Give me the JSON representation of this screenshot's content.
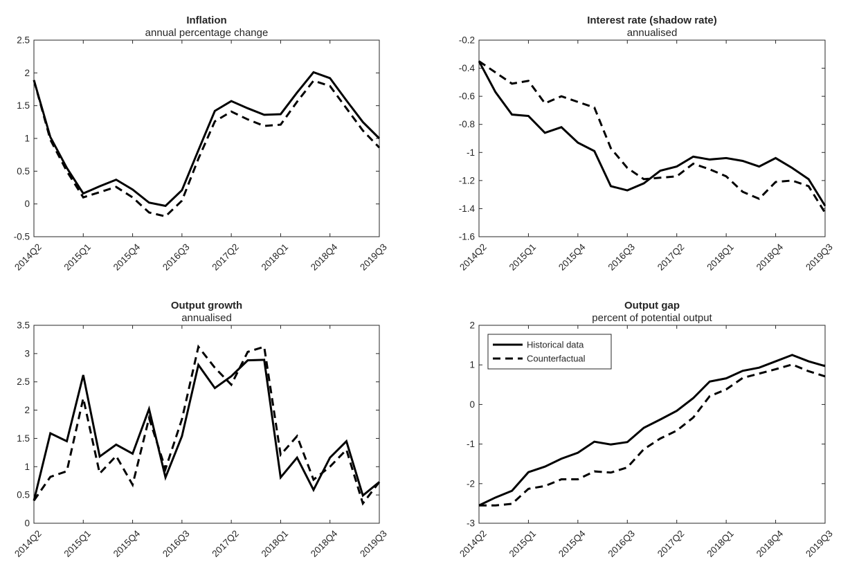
{
  "chart_data": [
    {
      "type": "line",
      "title": "Inflation",
      "subtitle": "annual percentage change",
      "x_tick_labels": [
        "2014Q2",
        "2015Q1",
        "2015Q4",
        "2016Q3",
        "2017Q2",
        "2018Q1",
        "2018Q4",
        "2019Q3"
      ],
      "x": [
        "2014Q2",
        "2014Q3",
        "2014Q4",
        "2015Q1",
        "2015Q2",
        "2015Q3",
        "2015Q4",
        "2016Q1",
        "2016Q2",
        "2016Q3",
        "2016Q4",
        "2017Q1",
        "2017Q2",
        "2017Q3",
        "2017Q4",
        "2018Q1",
        "2018Q2",
        "2018Q3",
        "2018Q4",
        "2019Q1",
        "2019Q2",
        "2019Q3"
      ],
      "ylim": [
        -0.5,
        2.5
      ],
      "y_ticks": [
        -0.5,
        0,
        0.5,
        1,
        1.5,
        2,
        2.5
      ],
      "y_tick_labels": [
        "-0.5",
        "0",
        "0.5",
        "1",
        "1.5",
        "2",
        "2.5"
      ],
      "series": [
        {
          "name": "Historical data",
          "values": [
            1.89,
            1.02,
            0.55,
            0.16,
            0.27,
            0.37,
            0.22,
            0.02,
            -0.03,
            0.21,
            0.82,
            1.42,
            1.57,
            1.46,
            1.36,
            1.37,
            1.7,
            2.01,
            1.92,
            1.58,
            1.25,
            1.0
          ]
        },
        {
          "name": "Counterfactual",
          "values": [
            1.89,
            0.98,
            0.5,
            0.1,
            0.18,
            0.26,
            0.1,
            -0.13,
            -0.19,
            0.05,
            0.69,
            1.26,
            1.41,
            1.29,
            1.19,
            1.21,
            1.56,
            1.88,
            1.8,
            1.46,
            1.12,
            0.86
          ]
        }
      ]
    },
    {
      "type": "line",
      "title": "Interest rate (shadow rate)",
      "subtitle": "annualised",
      "x_tick_labels": [
        "2014Q2",
        "2015Q1",
        "2015Q4",
        "2016Q3",
        "2017Q2",
        "2018Q1",
        "2018Q4",
        "2019Q3"
      ],
      "x": [
        "2014Q2",
        "2014Q3",
        "2014Q4",
        "2015Q1",
        "2015Q2",
        "2015Q3",
        "2015Q4",
        "2016Q1",
        "2016Q2",
        "2016Q3",
        "2016Q4",
        "2017Q1",
        "2017Q2",
        "2017Q3",
        "2017Q4",
        "2018Q1",
        "2018Q2",
        "2018Q3",
        "2018Q4",
        "2019Q1",
        "2019Q2",
        "2019Q3"
      ],
      "ylim": [
        -1.6,
        -0.2
      ],
      "y_ticks": [
        -1.6,
        -1.4,
        -1.2,
        -1,
        -0.8,
        -0.6,
        -0.4,
        -0.2
      ],
      "y_tick_labels": [
        "-1.6",
        "-1.4",
        "-1.2",
        "-1",
        "-0.8",
        "-0.6",
        "-0.4",
        "-0.2"
      ],
      "series": [
        {
          "name": "Historical data",
          "values": [
            -0.35,
            -0.57,
            -0.73,
            -0.74,
            -0.86,
            -0.82,
            -0.93,
            -0.99,
            -1.24,
            -1.27,
            -1.22,
            -1.13,
            -1.1,
            -1.03,
            -1.05,
            -1.04,
            -1.06,
            -1.1,
            -1.04,
            -1.11,
            -1.19,
            -1.38
          ]
        },
        {
          "name": "Counterfactual",
          "values": [
            -0.35,
            -0.43,
            -0.51,
            -0.49,
            -0.65,
            -0.6,
            -0.64,
            -0.68,
            -0.97,
            -1.11,
            -1.19,
            -1.18,
            -1.17,
            -1.08,
            -1.12,
            -1.17,
            -1.28,
            -1.33,
            -1.21,
            -1.2,
            -1.24,
            -1.43
          ]
        }
      ]
    },
    {
      "type": "line",
      "title": "Output growth",
      "subtitle": "annualised",
      "x_tick_labels": [
        "2014Q2",
        "2015Q1",
        "2015Q4",
        "2016Q3",
        "2017Q2",
        "2018Q1",
        "2018Q4",
        "2019Q3"
      ],
      "x": [
        "2014Q2",
        "2014Q3",
        "2014Q4",
        "2015Q1",
        "2015Q2",
        "2015Q3",
        "2015Q4",
        "2016Q1",
        "2016Q2",
        "2016Q3",
        "2016Q4",
        "2017Q1",
        "2017Q2",
        "2017Q3",
        "2017Q4",
        "2018Q1",
        "2018Q2",
        "2018Q3",
        "2018Q4",
        "2019Q1",
        "2019Q2",
        "2019Q3"
      ],
      "ylim": [
        0,
        3.5
      ],
      "y_ticks": [
        0,
        0.5,
        1,
        1.5,
        2,
        2.5,
        3,
        3.5
      ],
      "y_tick_labels": [
        "0",
        "0.5",
        "1",
        "1.5",
        "2",
        "2.5",
        "3",
        "3.5"
      ],
      "series": [
        {
          "name": "Historical data",
          "values": [
            0.4,
            1.59,
            1.45,
            2.62,
            1.18,
            1.39,
            1.23,
            2.02,
            0.81,
            1.54,
            2.8,
            2.39,
            2.6,
            2.88,
            2.89,
            0.81,
            1.16,
            0.59,
            1.16,
            1.45,
            0.49,
            0.73
          ]
        },
        {
          "name": "Counterfactual",
          "values": [
            0.4,
            0.82,
            0.92,
            2.21,
            0.88,
            1.19,
            0.68,
            1.86,
            0.96,
            1.84,
            3.12,
            2.75,
            2.45,
            3.03,
            3.12,
            1.21,
            1.54,
            0.77,
            1.0,
            1.3,
            0.35,
            0.73
          ]
        }
      ]
    },
    {
      "type": "line",
      "title": "Output gap",
      "subtitle": "percent of potential output",
      "legend": [
        "Historical data",
        "Counterfactual"
      ],
      "legend_position": "top-left",
      "x_tick_labels": [
        "2014Q2",
        "2015Q1",
        "2015Q4",
        "2016Q3",
        "2017Q2",
        "2018Q1",
        "2018Q4",
        "2019Q3"
      ],
      "x": [
        "2014Q2",
        "2014Q3",
        "2014Q4",
        "2015Q1",
        "2015Q2",
        "2015Q3",
        "2015Q4",
        "2016Q1",
        "2016Q2",
        "2016Q3",
        "2016Q4",
        "2017Q1",
        "2017Q2",
        "2017Q3",
        "2017Q4",
        "2018Q1",
        "2018Q2",
        "2018Q3",
        "2018Q4",
        "2019Q1",
        "2019Q2",
        "2019Q3"
      ],
      "ylim": [
        -3,
        2
      ],
      "y_ticks": [
        -3,
        -2,
        -1,
        0,
        1,
        2
      ],
      "y_tick_labels": [
        "-3",
        "-2",
        "-1",
        "0",
        "1",
        "2"
      ],
      "series": [
        {
          "name": "Historical data",
          "values": [
            -2.55,
            -2.35,
            -2.18,
            -1.71,
            -1.57,
            -1.37,
            -1.22,
            -0.94,
            -1.01,
            -0.95,
            -0.59,
            -0.38,
            -0.16,
            0.16,
            0.58,
            0.66,
            0.85,
            0.93,
            1.09,
            1.25,
            1.09,
            0.97
          ]
        },
        {
          "name": "Counterfactual",
          "values": [
            -2.55,
            -2.55,
            -2.51,
            -2.13,
            -2.06,
            -1.89,
            -1.89,
            -1.69,
            -1.72,
            -1.59,
            -1.13,
            -0.86,
            -0.66,
            -0.33,
            0.21,
            0.38,
            0.67,
            0.78,
            0.89,
            1.01,
            0.84,
            0.71
          ]
        }
      ]
    }
  ]
}
